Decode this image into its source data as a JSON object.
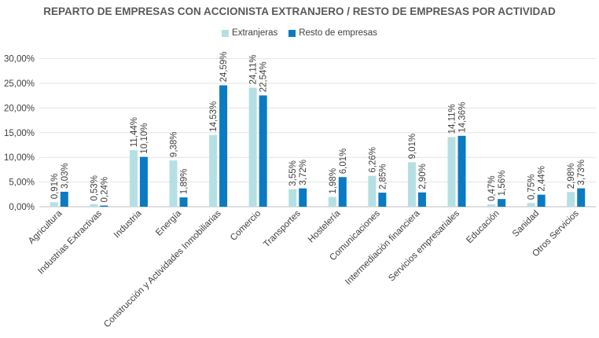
{
  "chart_data": {
    "type": "bar",
    "title": "REPARTO DE EMPRESAS CON ACCIONISTA EXTRANJERO / RESTO DE EMPRESAS POR ACTIVIDAD",
    "xlabel": "",
    "ylabel": "",
    "ylim": [
      0,
      32
    ],
    "yticks": [
      0,
      5,
      10,
      15,
      20,
      25,
      30
    ],
    "ytick_labels": [
      "0,00%",
      "5,00%",
      "10,00%",
      "15,00%",
      "20,00%",
      "25,00%",
      "30,00%"
    ],
    "grid": true,
    "legend_position": "top-center",
    "categories": [
      "Agricultura",
      "Industrias Extractivas",
      "Industria",
      "Energía",
      "Construcción y Actividades Inmobiliarias",
      "Comercio",
      "Transportes",
      "Hostelería",
      "Comunicaciones",
      "Intermediación financiera",
      "Servicios empresariales",
      "Educación",
      "Sanidad",
      "Otros Servicios"
    ],
    "series": [
      {
        "name": "Extranjeras",
        "color": "#b4e0e3",
        "values": [
          0.91,
          0.53,
          11.44,
          9.38,
          14.53,
          24.11,
          3.55,
          1.98,
          6.26,
          9.01,
          14.11,
          0.47,
          0.75,
          2.98
        ],
        "labels": [
          "0,91%",
          "0,53%",
          "11,44%",
          "9,38%",
          "14,53%",
          "24,11%",
          "3,55%",
          "1,98%",
          "6,26%",
          "9,01%",
          "14,11%",
          "0,47%",
          "0,75%",
          "2,98%"
        ]
      },
      {
        "name": "Resto de empresas",
        "color": "#0a7bc2",
        "values": [
          3.03,
          0.24,
          10.1,
          1.89,
          24.59,
          22.54,
          3.72,
          6.01,
          2.85,
          2.9,
          14.36,
          1.56,
          2.44,
          3.73
        ],
        "labels": [
          "3,03%",
          "0,24%",
          "10,10%",
          "1,89%",
          "24,59%",
          "22,54%",
          "3,72%",
          "6,01%",
          "2,85%",
          "2,90%",
          "14,36%",
          "1,56%",
          "2,44%",
          "3,73%"
        ]
      }
    ]
  }
}
